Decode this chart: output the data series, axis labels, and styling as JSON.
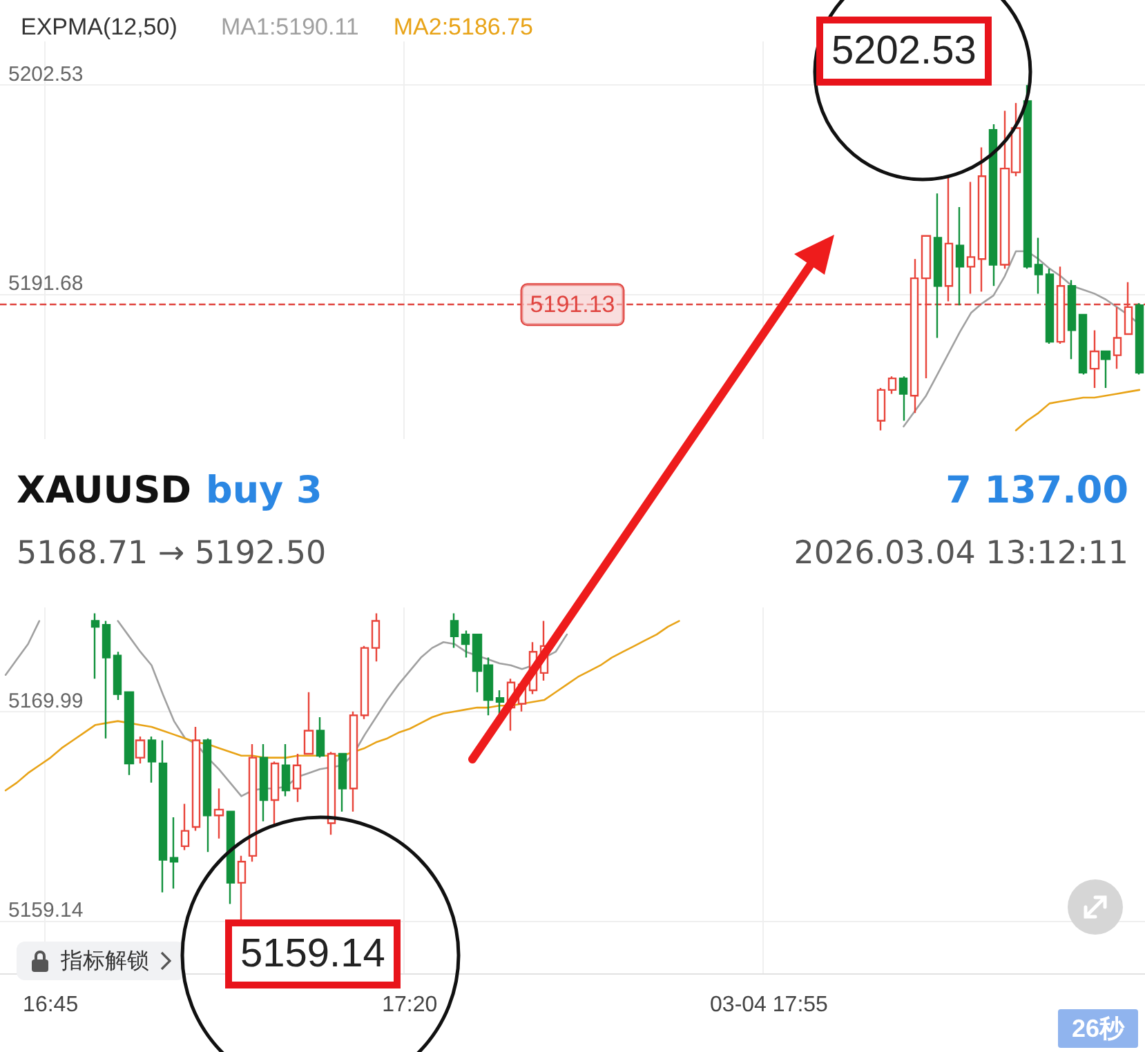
{
  "chart_data": {
    "type": "candlestick",
    "title": "EXPMA(12,50)",
    "categories": [
      null,
      null,
      null,
      null,
      "16:45",
      null,
      null,
      null,
      null,
      null,
      null,
      null,
      null,
      null,
      null,
      null,
      null,
      null,
      null,
      null,
      null,
      null,
      null,
      null,
      null,
      null,
      null,
      null,
      null,
      null,
      null,
      null,
      null,
      null,
      null,
      null,
      "17:20",
      null,
      null,
      null,
      null,
      null,
      null,
      null,
      null,
      null,
      null,
      null,
      null,
      null,
      null,
      null,
      null,
      null,
      null,
      null,
      null,
      null,
      null,
      null,
      null,
      null,
      null,
      null,
      null,
      null,
      null,
      null,
      "03-04 17:55",
      null,
      null,
      null,
      null,
      null,
      null,
      null,
      null,
      null,
      null,
      null,
      null,
      null,
      null,
      null,
      null,
      null,
      null,
      null,
      null,
      null,
      null,
      null,
      null,
      null,
      null,
      null,
      null,
      null,
      null,
      null,
      null,
      null
    ],
    "ohlc": [
      null,
      null,
      null,
      null,
      null,
      null,
      null,
      null,
      [
        5174.7,
        5175.1,
        5171.7,
        5174.4
      ],
      [
        5174.5,
        5174.7,
        5168.6,
        5172.8
      ],
      [
        5172.9,
        5173.1,
        5170.6,
        5170.9
      ],
      [
        5171.0,
        5171.0,
        5166.7,
        5167.3
      ],
      [
        5167.6,
        5168.7,
        5167.3,
        5168.5
      ],
      [
        5168.5,
        5168.7,
        5166.3,
        5167.4
      ],
      [
        5167.3,
        5168.5,
        5160.6,
        5162.3
      ],
      [
        5162.4,
        5164.5,
        5160.8,
        5162.2
      ],
      [
        5163.0,
        5165.2,
        5162.8,
        5163.8
      ],
      [
        5164.0,
        5169.2,
        5163.8,
        5168.5
      ],
      [
        5168.5,
        5168.6,
        5162.7,
        5164.6
      ],
      [
        5164.6,
        5166.0,
        5163.4,
        5164.9
      ],
      [
        5164.8,
        5164.8,
        5160.0,
        5161.1
      ],
      [
        5161.1,
        5162.5,
        5159.14,
        5162.2
      ],
      [
        5162.5,
        5168.3,
        5162.2,
        5167.6
      ],
      [
        5167.6,
        5168.3,
        5164.3,
        5165.4
      ],
      [
        5165.4,
        5167.4,
        5164.0,
        5167.3
      ],
      [
        5167.2,
        5168.3,
        5165.6,
        5165.9
      ],
      [
        5166.0,
        5167.8,
        5165.3,
        5167.2
      ],
      [
        5167.8,
        5171.0,
        5167.8,
        5169.0
      ],
      [
        5169.0,
        5169.7,
        5167.6,
        5167.7
      ],
      [
        5164.2,
        5167.9,
        5163.6,
        5167.8
      ],
      [
        5167.8,
        5167.8,
        5164.8,
        5166.0
      ],
      [
        5166.0,
        5170.0,
        5164.8,
        5169.8
      ],
      [
        5169.8,
        5173.4,
        5169.6,
        5173.3
      ],
      [
        5173.3,
        5175.1,
        5172.6,
        5174.7
      ],
      null,
      null,
      null,
      null,
      null,
      null,
      [
        5174.7,
        5175.1,
        5173.3,
        5173.9
      ],
      [
        5174.0,
        5174.2,
        5172.8,
        5173.5
      ],
      [
        5174.0,
        5174.0,
        5171.0,
        5172.1
      ],
      [
        5172.4,
        5172.8,
        5169.8,
        5170.6
      ],
      [
        5170.7,
        5171.1,
        5169.7,
        5170.5
      ],
      [
        5170.2,
        5171.7,
        5169.0,
        5171.5
      ],
      [
        5170.4,
        5171.5,
        5170.0,
        5171.4
      ],
      [
        5171.1,
        5173.6,
        5170.9,
        5173.1
      ],
      [
        5172.0,
        5174.7,
        5171.6,
        5173.4
      ],
      null,
      null,
      null,
      null,
      null,
      null,
      null,
      null,
      null,
      null,
      null,
      null,
      null,
      null,
      null,
      null,
      null,
      null,
      null,
      null,
      null,
      null,
      null,
      null,
      null,
      null,
      null,
      null,
      null,
      [
        5185.1,
        5186.8,
        5184.6,
        5186.7
      ],
      [
        5186.7,
        5187.4,
        5186.5,
        5187.3
      ],
      [
        5187.3,
        5187.4,
        5185.1,
        5186.5
      ],
      [
        5186.4,
        5193.5,
        5185.5,
        5192.5
      ],
      [
        5192.5,
        5194.7,
        5187.3,
        5194.7
      ],
      [
        5194.6,
        5196.9,
        5189.4,
        5192.1
      ],
      [
        5192.1,
        5197.7,
        5191.3,
        5194.3
      ],
      [
        5194.2,
        5196.2,
        5191.1,
        5193.1
      ],
      [
        5193.1,
        5197.5,
        5191.7,
        5193.6
      ],
      [
        5193.5,
        5199.3,
        5191.8,
        5197.8
      ],
      [
        5200.2,
        5200.5,
        5192.1,
        5193.2
      ],
      [
        5193.2,
        5201.2,
        5193.0,
        5198.2
      ],
      [
        5198.0,
        5201.6,
        5197.8,
        5200.3
      ],
      [
        5201.7,
        5202.53,
        5193.0,
        5193.1
      ],
      [
        5193.2,
        5194.6,
        5191.7,
        5192.7
      ],
      [
        5192.7,
        5193.0,
        5189.1,
        5189.2
      ],
      [
        5189.2,
        5193.1,
        5189.1,
        5192.1
      ],
      [
        5192.1,
        5192.4,
        5188.3,
        5189.8
      ],
      [
        5190.6,
        5190.6,
        5187.5,
        5187.6
      ],
      [
        5187.8,
        5189.8,
        5186.8,
        5188.7
      ],
      [
        5188.7,
        5188.7,
        5186.8,
        5188.3
      ],
      [
        5188.5,
        5191.0,
        5187.8,
        5189.4
      ],
      [
        5189.6,
        5192.3,
        5189.6,
        5191.0
      ],
      [
        5191.1,
        5191.2,
        5187.5,
        5187.6
      ]
    ],
    "series": [
      {
        "name": "MA1:5190.11",
        "type": "line",
        "color": "#a0a0a0",
        "values": [
          5171.9,
          5172.7,
          5173.5,
          5174.7,
          null,
          null,
          null,
          null,
          null,
          null,
          5174.7,
          5173.9,
          5173.1,
          5172.4,
          5170.9,
          5169.5,
          5168.6,
          5168.3,
          5167.6,
          5167.0,
          5166.3,
          5165.6,
          5165.9,
          5166.0,
          5166.0,
          5166.1,
          5166.6,
          5166.8,
          5167.0,
          5167.1,
          5167.2,
          5167.8,
          5168.8,
          5169.7,
          5170.6,
          5171.4,
          5172.1,
          5172.8,
          5173.3,
          5173.6,
          5173.5,
          5173.1,
          5172.9,
          5172.7,
          5172.5,
          5172.4,
          5172.2,
          5172.4,
          5172.8,
          5173.1,
          5174.0,
          null,
          null,
          null,
          null,
          null,
          null,
          null,
          null,
          null,
          null,
          null,
          null,
          null,
          null,
          null,
          null,
          null,
          null,
          null,
          null,
          null,
          null,
          null,
          null,
          null,
          null,
          null,
          null,
          null,
          5184.8,
          5185.6,
          5186.4,
          5187.5,
          5188.6,
          5189.7,
          5190.7,
          5191.2,
          5191.6,
          5192.6,
          5193.9,
          5193.9,
          5193.5,
          5193.0,
          5192.6,
          5192.1,
          5191.9,
          5191.7,
          5191.4,
          5191.0,
          5190.6,
          5190.1
        ]
      },
      {
        "name": "MA2:5186.75",
        "type": "line",
        "color": "#e8a317",
        "values": [
          5165.9,
          5166.3,
          5166.8,
          5167.2,
          5167.6,
          5168.1,
          5168.5,
          5168.9,
          5169.3,
          5169.4,
          5169.5,
          5169.4,
          5169.3,
          5169.2,
          5169.0,
          5168.8,
          5168.6,
          5168.4,
          5168.3,
          5168.1,
          5167.9,
          5167.7,
          5167.7,
          5167.6,
          5167.6,
          5167.6,
          5167.7,
          5167.7,
          5167.7,
          5167.7,
          5167.7,
          5167.9,
          5168.1,
          5168.4,
          5168.6,
          5168.9,
          5169.1,
          5169.4,
          5169.7,
          5169.9,
          5170.0,
          5170.1,
          5170.2,
          5170.2,
          5170.3,
          5170.3,
          5170.4,
          5170.5,
          5170.6,
          5171.0,
          5171.4,
          5171.8,
          5172.1,
          5172.4,
          5172.8,
          5173.1,
          5173.4,
          5173.7,
          5174.0,
          5174.4,
          5174.7,
          null,
          null,
          null,
          null,
          null,
          null,
          null,
          null,
          null,
          null,
          null,
          null,
          null,
          null,
          null,
          null,
          null,
          null,
          null,
          null,
          null,
          null,
          null,
          null,
          null,
          null,
          null,
          null,
          null,
          5184.6,
          5185.1,
          5185.5,
          5186.0,
          5186.1,
          5186.2,
          5186.3,
          5186.3,
          5186.4,
          5186.5,
          5186.6,
          5186.7
        ]
      }
    ],
    "ylim": [
      5156.4,
      5204.8
    ],
    "yticks": [
      5159.14,
      5169.99,
      5191.68,
      5202.53
    ],
    "grid": true,
    "legend": "top left",
    "marker": "none",
    "ref_lines": [
      {
        "axis": "y",
        "value": 5191.13,
        "label": "5191.13",
        "color": "#e0443f",
        "line_style": "dashed"
      }
    ],
    "annotations": [
      "XAUUSD",
      "buy 3",
      "7 137.00",
      "5168.71 → 5192.50",
      "2026.03.04 13:12:11",
      "5202.53",
      "5159.14",
      "指标解锁",
      "26秒"
    ]
  }
}
